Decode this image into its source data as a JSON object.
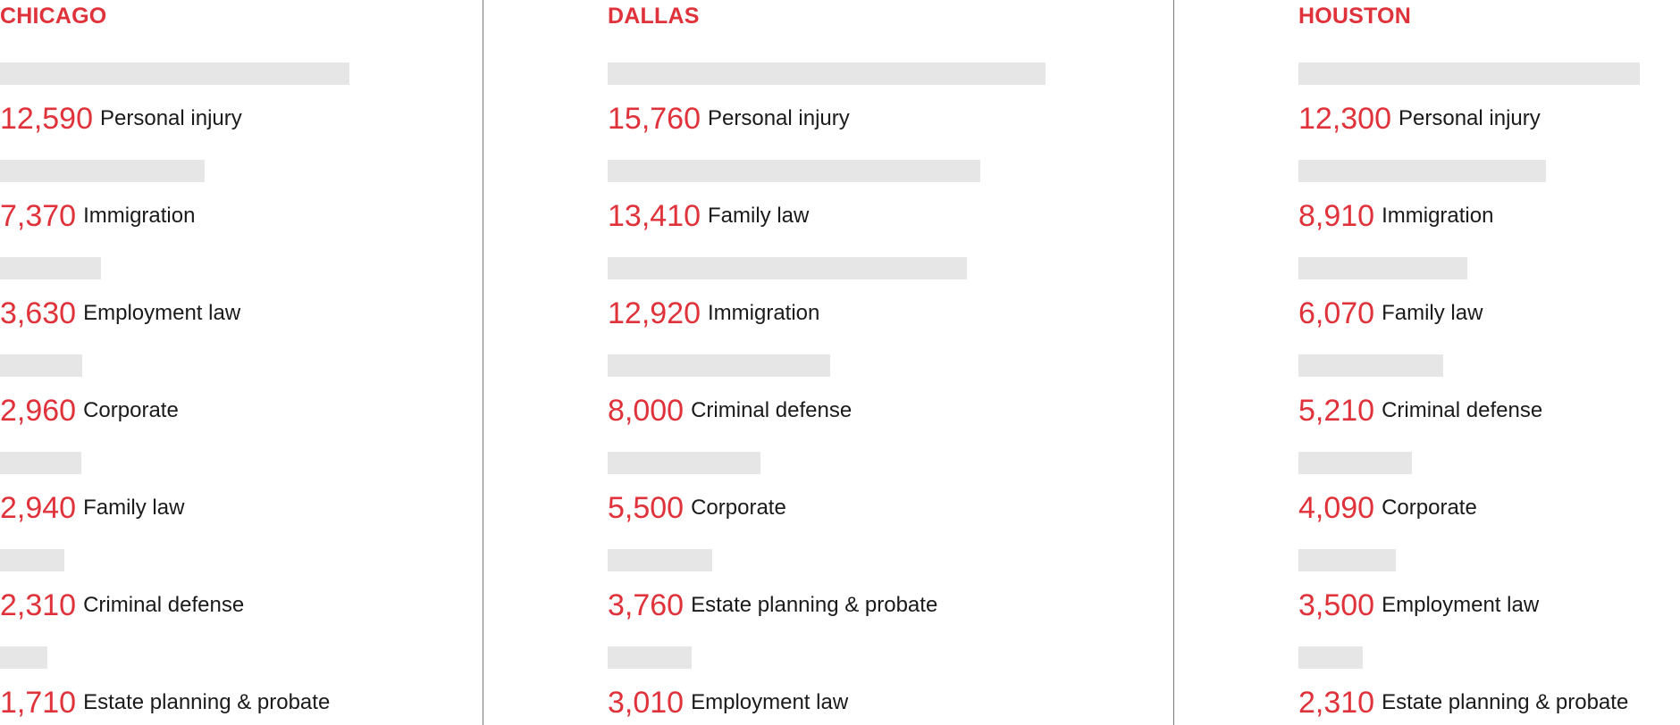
{
  "chart_data": [
    {
      "type": "bar",
      "title": "CHICAGO",
      "categories": [
        "Personal injury",
        "Immigration",
        "Employment law",
        "Corporate",
        "Family law",
        "Criminal defense",
        "Estate planning & probate"
      ],
      "values": [
        12590,
        7370,
        3630,
        2960,
        2940,
        2310,
        1710
      ],
      "value_labels": [
        "12,590",
        "7,370",
        "3,630",
        "2,960",
        "2,940",
        "2,310",
        "1,710"
      ]
    },
    {
      "type": "bar",
      "title": "DALLAS",
      "categories": [
        "Personal injury",
        "Family law",
        "Immigration",
        "Criminal defense",
        "Corporate",
        "Estate planning & probate",
        "Employment law"
      ],
      "values": [
        15760,
        13410,
        12920,
        8000,
        5500,
        3760,
        3010
      ],
      "value_labels": [
        "15,760",
        "13,410",
        "12,920",
        "8,000",
        "5,500",
        "3,760",
        "3,010"
      ]
    },
    {
      "type": "bar",
      "title": "HOUSTON",
      "categories": [
        "Personal injury",
        "Immigration",
        "Family law",
        "Criminal defense",
        "Corporate",
        "Employment law",
        "Estate planning & probate"
      ],
      "values": [
        12300,
        8910,
        6070,
        5210,
        4090,
        3500,
        2310
      ],
      "value_labels": [
        "12,300",
        "8,910",
        "6,070",
        "5,210",
        "4,090",
        "3,500",
        "2,310"
      ]
    }
  ],
  "colors": {
    "accent": "#e0323a",
    "bar": "#e6e6e6",
    "text": "#1a1a1a",
    "divider": "#7a7a7a"
  }
}
